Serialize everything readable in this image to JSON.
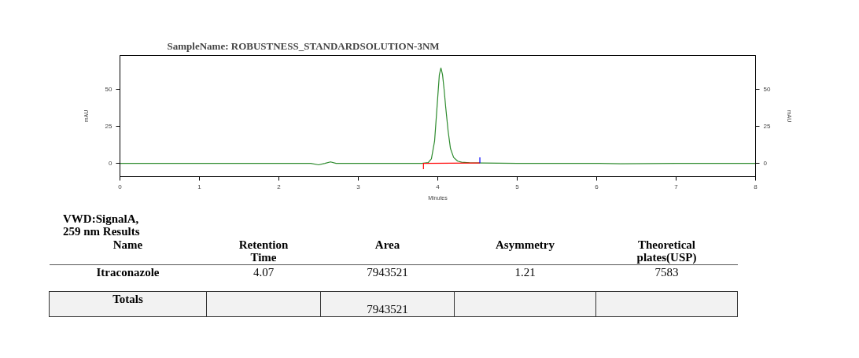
{
  "chart_data": {
    "type": "line",
    "title": "SampleName: ROBUSTNESS_STANDARDSOLUTION-3NM",
    "xlabel": "Minutes",
    "ylabel": "mAU",
    "y2label": "mAU",
    "xlim": [
      0,
      8
    ],
    "xticks": [
      0,
      1,
      2,
      3,
      4,
      5,
      6,
      7,
      8
    ],
    "ylim": [
      -9,
      73
    ],
    "yticks": [
      0,
      25,
      50
    ],
    "y2lim": [
      -9,
      73
    ],
    "y2ticks": [
      0,
      25,
      50
    ],
    "grid": false,
    "marker": "none",
    "series": [
      {
        "color": "#2e8b2e",
        "x": [
          0,
          1,
          2,
          2.4,
          2.5,
          2.58,
          2.65,
          2.72,
          3,
          3.8,
          3.88,
          3.92,
          3.96,
          4.0,
          4.02,
          4.04,
          4.06,
          4.08,
          4.1,
          4.13,
          4.16,
          4.2,
          4.25,
          4.3,
          4.4,
          4.53,
          5,
          6,
          6.3,
          7,
          8
        ],
        "values": [
          0,
          0,
          0,
          0,
          -1,
          0,
          1,
          0,
          0,
          0,
          0.5,
          3,
          15,
          45,
          60,
          64.5,
          60,
          50,
          38,
          22,
          10,
          4,
          1.5,
          0.8,
          0.4,
          0.2,
          0,
          0,
          -0.3,
          0,
          0
        ]
      },
      {
        "color": "#ff0000",
        "x": [
          3.82,
          3.82,
          4.53
        ],
        "values": [
          -4,
          0,
          0.2
        ]
      },
      {
        "color": "#0000ff",
        "x": [
          4.53,
          4.53
        ],
        "values": [
          0.2,
          4
        ]
      }
    ],
    "annotations": [
      "VWD:SignalA,\n259 nm Results",
      "Name",
      "Retention\nTime",
      "Area",
      "Asymmetry",
      "Theoretical\nplates(USP)",
      "Itraconazole",
      "4.07",
      "7943521",
      "1.21",
      "7583",
      "Totals",
      "7943521"
    ]
  }
}
